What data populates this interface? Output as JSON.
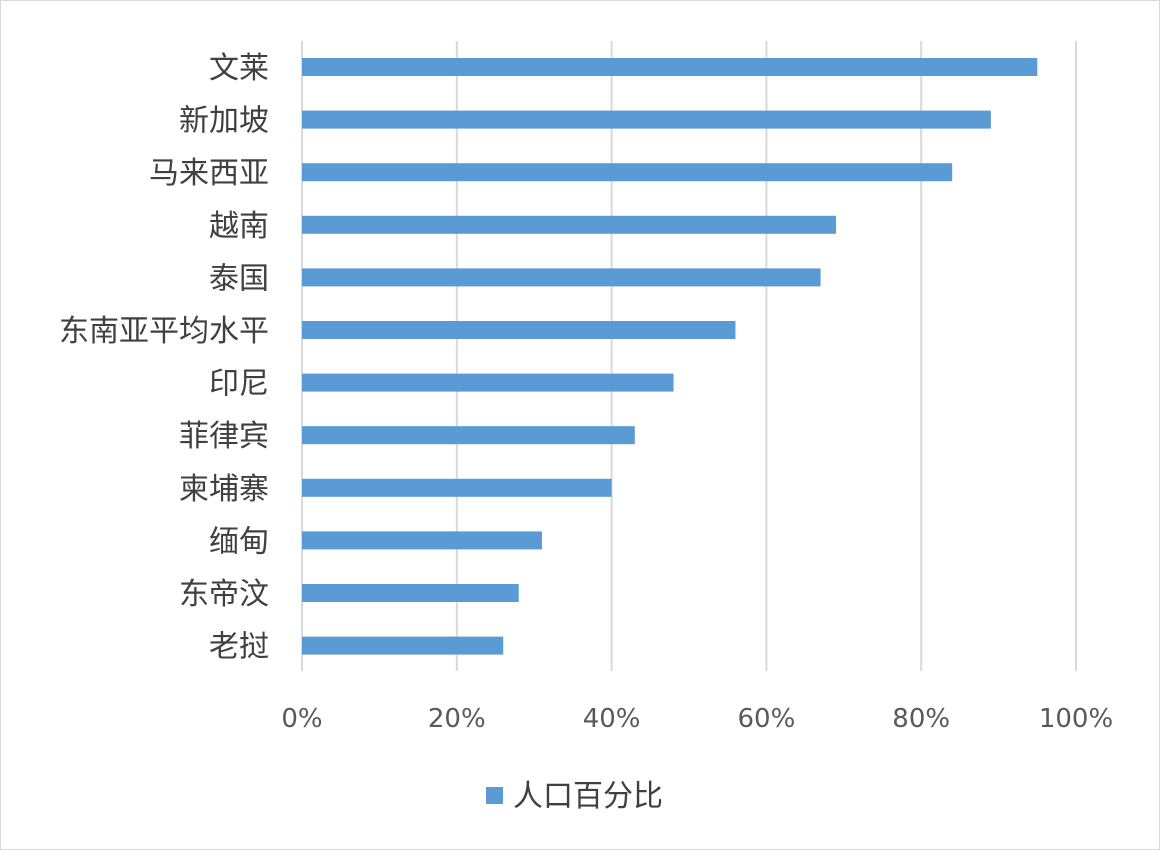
{
  "chart_data": {
    "type": "bar",
    "orientation": "horizontal",
    "categories": [
      "文莱",
      "新加坡",
      "马来西亚",
      "越南",
      "泰国",
      "东南亚平均水平",
      "印尼",
      "菲律宾",
      "柬埔寨",
      "缅甸",
      "东帝汶",
      "老挝"
    ],
    "series": [
      {
        "name": "人口百分比",
        "values": [
          95,
          89,
          84,
          69,
          67,
          56,
          48,
          43,
          40,
          31,
          28,
          26
        ]
      }
    ],
    "xlim": [
      0,
      100
    ],
    "x_ticks": [
      0,
      20,
      40,
      60,
      80,
      100
    ],
    "x_tick_labels": [
      "0%",
      "20%",
      "40%",
      "60%",
      "80%",
      "100%"
    ],
    "grid": "vertical",
    "legend": "bottom",
    "colors": {
      "bar": "#5b9bd5",
      "grid": "#d9d9d9",
      "text": "#404040"
    }
  }
}
